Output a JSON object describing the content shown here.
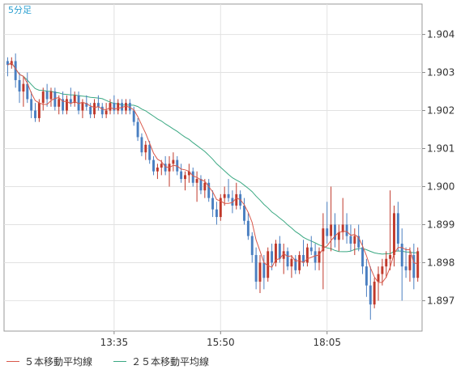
{
  "chart_data": {
    "type": "candlestick",
    "timeframe_label": "5分足",
    "ylim": [
      1.8962,
      1.9048
    ],
    "yticks": [
      "1.904",
      "1.903",
      "1.902",
      "1.901",
      "1.900",
      "1.899",
      "1.898",
      "1.897"
    ],
    "ytick_values": [
      1.904,
      1.903,
      1.902,
      1.901,
      1.9,
      1.899,
      1.898,
      1.897
    ],
    "xticks": [
      "13:35",
      "15:50",
      "18:05"
    ],
    "xtick_bar_index": [
      27,
      54,
      81
    ],
    "grid": true,
    "legend": [
      {
        "label": "５本移動平均線",
        "color": "#d9584a"
      },
      {
        "label": "２５本移動平均線",
        "color": "#3aa882"
      }
    ],
    "colors": {
      "up": "#c0392b",
      "down": "#4a7fc1",
      "ma5": "#d9584a",
      "ma25": "#3aa882",
      "grid": "#e2e2e2",
      "axis": "#888888"
    },
    "candles": [
      [
        1.9033,
        1.9034,
        1.9029,
        1.9032
      ],
      [
        1.9032,
        1.9034,
        1.9031,
        1.9033
      ],
      [
        1.9033,
        1.9035,
        1.9026,
        1.9028
      ],
      [
        1.9028,
        1.903,
        1.9022,
        1.9025
      ],
      [
        1.9025,
        1.9029,
        1.9021,
        1.9027
      ],
      [
        1.9027,
        1.903,
        1.9022,
        1.9023
      ],
      [
        1.9023,
        1.9025,
        1.9018,
        1.902
      ],
      [
        1.902,
        1.9022,
        1.9017,
        1.9018
      ],
      [
        1.9018,
        1.9023,
        1.9017,
        1.9022
      ],
      [
        1.9022,
        1.9026,
        1.902,
        1.9025
      ],
      [
        1.9025,
        1.9027,
        1.9021,
        1.9023
      ],
      [
        1.9023,
        1.9026,
        1.9021,
        1.9025
      ],
      [
        1.9025,
        1.9026,
        1.902,
        1.9021
      ],
      [
        1.9021,
        1.9024,
        1.9019,
        1.9023
      ],
      [
        1.9023,
        1.9025,
        1.9019,
        1.902
      ],
      [
        1.902,
        1.9024,
        1.9019,
        1.9023
      ],
      [
        1.9023,
        1.9026,
        1.9021,
        1.9022
      ],
      [
        1.9022,
        1.9025,
        1.9021,
        1.9024
      ],
      [
        1.9024,
        1.9025,
        1.9019,
        1.902
      ],
      [
        1.902,
        1.9023,
        1.9018,
        1.9022
      ],
      [
        1.9022,
        1.9024,
        1.902,
        1.9021
      ],
      [
        1.9021,
        1.9022,
        1.9018,
        1.9019
      ],
      [
        1.9019,
        1.9023,
        1.9018,
        1.9022
      ],
      [
        1.9022,
        1.9024,
        1.902,
        1.9021
      ],
      [
        1.9021,
        1.9022,
        1.9018,
        1.9019
      ],
      [
        1.9019,
        1.9022,
        1.9018,
        1.902
      ],
      [
        1.902,
        1.9023,
        1.9019,
        1.9022
      ],
      [
        1.9022,
        1.9024,
        1.9019,
        1.902
      ],
      [
        1.902,
        1.9023,
        1.9019,
        1.9022
      ],
      [
        1.9022,
        1.9023,
        1.9019,
        1.902
      ],
      [
        1.902,
        1.9023,
        1.9019,
        1.9022
      ],
      [
        1.9022,
        1.9023,
        1.9019,
        1.902
      ],
      [
        1.902,
        1.9021,
        1.9016,
        1.9017
      ],
      [
        1.9017,
        1.9018,
        1.9012,
        1.9013
      ],
      [
        1.9013,
        1.9014,
        1.9008,
        1.9009
      ],
      [
        1.9009,
        1.9012,
        1.9007,
        1.9011
      ],
      [
        1.9011,
        1.9012,
        1.9006,
        1.9007
      ],
      [
        1.9007,
        1.9008,
        1.9003,
        1.9004
      ],
      [
        1.9004,
        1.9006,
        1.9002,
        1.9005
      ],
      [
        1.9005,
        1.9007,
        1.9003,
        1.9006
      ],
      [
        1.9006,
        1.9008,
        1.9003,
        1.9004
      ],
      [
        1.9004,
        1.9008,
        1.9,
        1.9006
      ],
      [
        1.9006,
        1.9009,
        1.9004,
        1.9007
      ],
      [
        1.9007,
        1.9008,
        1.9003,
        1.9004
      ],
      [
        1.9004,
        1.9006,
        1.9001,
        1.9002
      ],
      [
        1.9002,
        1.9004,
        1.8999,
        1.9003
      ],
      [
        1.9003,
        1.9006,
        1.9001,
        1.9004
      ],
      [
        1.9004,
        1.9005,
        1.9,
        1.9001
      ],
      [
        1.9001,
        1.9004,
        1.8996,
        1.9002
      ],
      [
        1.9002,
        1.9003,
        1.8998,
        1.8999
      ],
      [
        1.8999,
        1.9002,
        1.8997,
        1.9001
      ],
      [
        1.9001,
        1.9002,
        1.8996,
        1.8997
      ],
      [
        1.8997,
        1.8999,
        1.8992,
        1.8994
      ],
      [
        1.8994,
        1.8996,
        1.899,
        1.8992
      ],
      [
        1.8992,
        1.8998,
        1.8991,
        1.8997
      ],
      [
        1.8997,
        1.9,
        1.8995,
        1.8998
      ],
      [
        1.8998,
        1.9002,
        1.8996,
        1.8997
      ],
      [
        1.8997,
        1.8999,
        1.8993,
        1.8995
      ],
      [
        1.8995,
        1.9001,
        1.8994,
        1.8998
      ],
      [
        1.8998,
        1.8999,
        1.8994,
        1.8995
      ],
      [
        1.8995,
        1.8997,
        1.899,
        1.8991
      ],
      [
        1.8991,
        1.8993,
        1.8986,
        1.8987
      ],
      [
        1.8987,
        1.8988,
        1.898,
        1.8982
      ],
      [
        1.8982,
        1.8984,
        1.8973,
        1.8975
      ],
      [
        1.8975,
        1.8982,
        1.8972,
        1.898
      ],
      [
        1.898,
        1.8982,
        1.8973,
        1.8976
      ],
      [
        1.8976,
        1.8984,
        1.8975,
        1.8983
      ],
      [
        1.8983,
        1.8985,
        1.8978,
        1.898
      ],
      [
        1.898,
        1.8986,
        1.8979,
        1.8985
      ],
      [
        1.8985,
        1.8987,
        1.898,
        1.8981
      ],
      [
        1.8981,
        1.8985,
        1.8977,
        1.8983
      ],
      [
        1.8983,
        1.8984,
        1.8978,
        1.8979
      ],
      [
        1.8979,
        1.8982,
        1.8976,
        1.8981
      ],
      [
        1.8981,
        1.8982,
        1.8977,
        1.8978
      ],
      [
        1.8978,
        1.8983,
        1.8977,
        1.8982
      ],
      [
        1.8982,
        1.8986,
        1.8979,
        1.898
      ],
      [
        1.898,
        1.8985,
        1.8979,
        1.8984
      ],
      [
        1.8984,
        1.8987,
        1.8982,
        1.8983
      ],
      [
        1.8983,
        1.8985,
        1.8978,
        1.898
      ],
      [
        1.898,
        1.8984,
        1.8978,
        1.8983
      ],
      [
        1.8983,
        1.8993,
        1.8973,
        1.8989
      ],
      [
        1.8989,
        1.8996,
        1.8985,
        1.8987
      ],
      [
        1.8987,
        1.9,
        1.8983,
        1.899
      ],
      [
        1.899,
        1.8993,
        1.8984,
        1.8986
      ],
      [
        1.8986,
        1.899,
        1.8983,
        1.8988
      ],
      [
        1.8988,
        1.8997,
        1.8986,
        1.899
      ],
      [
        1.899,
        1.8993,
        1.8985,
        1.8987
      ],
      [
        1.8987,
        1.899,
        1.8983,
        1.8985
      ],
      [
        1.8985,
        1.8989,
        1.8982,
        1.8987
      ],
      [
        1.8987,
        1.899,
        1.8983,
        1.8984
      ],
      [
        1.8984,
        1.8986,
        1.8977,
        1.8979
      ],
      [
        1.8979,
        1.8981,
        1.8971,
        1.8974
      ],
      [
        1.8974,
        1.8979,
        1.8965,
        1.8969
      ],
      [
        1.8969,
        1.8976,
        1.8968,
        1.8975
      ],
      [
        1.8975,
        1.8979,
        1.897,
        1.8977
      ],
      [
        1.8977,
        1.8981,
        1.8974,
        1.8979
      ],
      [
        1.8979,
        1.8983,
        1.8976,
        1.8981
      ],
      [
        1.8981,
        1.8999,
        1.8978,
        1.8982
      ],
      [
        1.8982,
        1.8995,
        1.8979,
        1.8993
      ],
      [
        1.8993,
        1.8996,
        1.8983,
        1.8985
      ],
      [
        1.8985,
        1.8989,
        1.897,
        1.8979
      ],
      [
        1.8979,
        1.8984,
        1.8976,
        1.8978
      ],
      [
        1.8978,
        1.8984,
        1.8975,
        1.8982
      ],
      [
        1.8982,
        1.8985,
        1.8973,
        1.8976
      ],
      [
        1.8976,
        1.8984,
        1.8975,
        1.8983
      ]
    ]
  }
}
